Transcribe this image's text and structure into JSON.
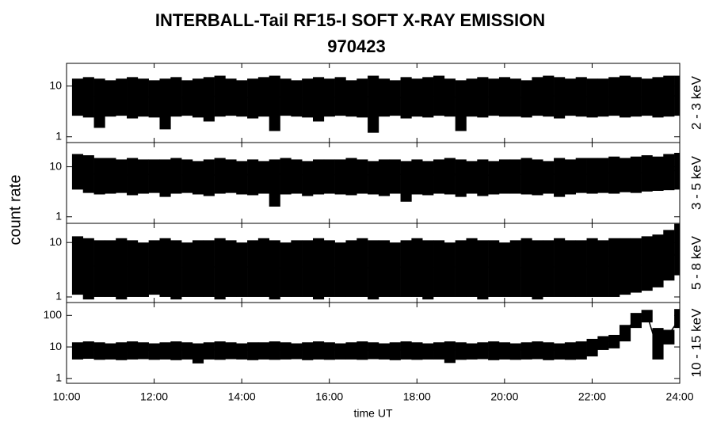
{
  "title": "INTERBALL-Tail RF15-I SOFT X-RAY EMISSION",
  "subtitle": "970423",
  "ylabel": "count rate",
  "xlabel": "time UT",
  "chart_data": [
    {
      "type": "line",
      "name": "2 - 3 keV",
      "color": "#000000",
      "log": true,
      "xlim": [
        10,
        24
      ],
      "xticks": [
        10,
        12,
        14,
        16,
        18,
        20,
        22,
        24
      ],
      "ylim": [
        0.77,
        28
      ],
      "yticks": [
        1,
        10
      ],
      "x": [
        10.25,
        10.5,
        10.75,
        11,
        11.25,
        11.5,
        11.75,
        12,
        12.25,
        12.5,
        12.75,
        13,
        13.25,
        13.5,
        13.75,
        14,
        14.25,
        14.5,
        14.75,
        15,
        15.25,
        15.5,
        15.75,
        16,
        16.25,
        16.5,
        16.75,
        17,
        17.25,
        17.5,
        17.75,
        18,
        18.25,
        18.5,
        18.75,
        19,
        19.25,
        19.5,
        19.75,
        20,
        20.25,
        20.5,
        20.75,
        21,
        21.25,
        21.5,
        21.75,
        22,
        22.25,
        22.5,
        22.75,
        23,
        23.25,
        23.5,
        23.75,
        24
      ],
      "values": [
        6,
        6.5,
        6,
        5.8,
        6.2,
        6,
        6.3,
        5.9,
        6,
        6.1,
        5.7,
        6,
        6.2,
        6.4,
        6,
        5.9,
        6,
        6.1,
        6.3,
        6,
        5.8,
        6,
        6.2,
        6,
        6.1,
        5.9,
        6,
        6.3,
        6,
        5.8,
        6.1,
        6,
        6.2,
        6.4,
        6,
        5.9,
        6,
        6.2,
        6,
        6.1,
        6,
        5.8,
        6.2,
        6.5,
        6.3,
        6,
        6.2,
        6.1,
        6,
        6.3,
        6.4,
        6.2,
        6,
        6.1,
        6.3,
        6.5
      ],
      "low": [
        2.6,
        2.4,
        1.5,
        2.5,
        2.6,
        2.3,
        2.5,
        2.4,
        1.4,
        2.5,
        2.6,
        2.4,
        2,
        2.5,
        2.6,
        2.5,
        2.3,
        2.5,
        1.3,
        2.6,
        2.5,
        2.4,
        2,
        2.5,
        2.6,
        2.5,
        2.4,
        1.2,
        2.5,
        2.6,
        2.3,
        2.5,
        2.4,
        2.6,
        2.5,
        1.3,
        2.5,
        2.4,
        2.6,
        2.5,
        2.5,
        2.4,
        2.6,
        2.5,
        2.3,
        2.6,
        2.5,
        2.4,
        2.5,
        2.6,
        2.4,
        2.5,
        2.6,
        2.4,
        2.5,
        2.6
      ],
      "high": [
        14,
        15,
        14,
        13,
        14,
        15,
        14,
        13,
        14,
        15,
        13,
        14,
        15,
        16,
        14,
        13,
        14,
        15,
        16,
        14,
        13,
        14,
        15,
        14,
        15,
        13,
        14,
        16,
        14,
        13,
        15,
        14,
        15,
        16,
        14,
        13,
        14,
        15,
        14,
        15,
        14,
        13,
        15,
        16,
        15,
        14,
        15,
        14,
        14,
        15,
        16,
        15,
        14,
        15,
        16,
        16
      ]
    },
    {
      "type": "line",
      "name": "3 - 5 keV",
      "color": "#000000",
      "log": true,
      "xlim": [
        10,
        24
      ],
      "xticks": [
        10,
        12,
        14,
        16,
        18,
        20,
        22,
        24
      ],
      "ylim": [
        0.74,
        30.5
      ],
      "yticks": [
        1,
        10
      ],
      "x": [
        10.25,
        10.5,
        10.75,
        11,
        11.25,
        11.5,
        11.75,
        12,
        12.25,
        12.5,
        12.75,
        13,
        13.25,
        13.5,
        13.75,
        14,
        14.25,
        14.5,
        14.75,
        15,
        15.25,
        15.5,
        15.75,
        16,
        16.25,
        16.5,
        16.75,
        17,
        17.25,
        17.5,
        17.75,
        18,
        18.25,
        18.5,
        18.75,
        19,
        19.25,
        19.5,
        19.75,
        20,
        20.25,
        20.5,
        20.75,
        21,
        21.25,
        21.5,
        21.75,
        22,
        22.25,
        22.5,
        22.75,
        23,
        23.25,
        23.5,
        23.75,
        24
      ],
      "values": [
        8,
        7.5,
        7,
        7.2,
        7,
        6.8,
        7,
        7.1,
        7,
        6.9,
        7,
        7.1,
        6.8,
        7,
        7.2,
        7,
        6.9,
        7,
        7.1,
        7,
        6.8,
        7,
        7.1,
        6.9,
        7,
        7.2,
        7,
        6.8,
        6.9,
        7,
        7.1,
        7,
        6.8,
        7,
        7.1,
        6.9,
        7,
        6.7,
        6.9,
        7,
        7,
        7.1,
        7,
        6.9,
        7.2,
        7.3,
        7.1,
        7.2,
        7.3,
        7.4,
        7.5,
        7.6,
        7.8,
        8,
        8.2,
        8.5
      ],
      "low": [
        3.5,
        3,
        2.8,
        2.9,
        3,
        2.7,
        2.9,
        3,
        2.5,
        2.9,
        3,
        2.8,
        2.6,
        2.9,
        3,
        2.8,
        2.7,
        2.9,
        1.6,
        2.8,
        2.9,
        2.6,
        2.8,
        2.9,
        2.8,
        2.7,
        2.9,
        2.8,
        2.6,
        2.9,
        2,
        2.8,
        2.7,
        2.9,
        2.8,
        2.5,
        2.9,
        2.6,
        2.8,
        2.9,
        2.9,
        2.8,
        2.7,
        2.9,
        2.5,
        2.8,
        3,
        2.9,
        3,
        2.9,
        3.1,
        3,
        3.2,
        3.3,
        3.4,
        3.5
      ],
      "high": [
        18,
        17,
        15,
        15,
        14,
        15,
        14,
        14,
        14,
        15,
        14,
        13,
        14,
        15,
        14,
        13,
        14,
        13,
        14,
        15,
        14,
        13,
        14,
        14,
        14,
        15,
        14,
        13,
        14,
        14,
        13,
        14,
        13,
        14,
        15,
        14,
        13,
        14,
        13,
        14,
        14,
        15,
        14,
        13,
        15,
        14,
        15,
        15,
        15,
        16,
        15,
        16,
        17,
        16,
        18,
        19
      ]
    },
    {
      "type": "line",
      "name": "5 - 8 keV",
      "color": "#000000",
      "log": true,
      "xlim": [
        10,
        24
      ],
      "xticks": [
        10,
        12,
        14,
        16,
        18,
        20,
        22,
        24
      ],
      "ylim": [
        0.79,
        22.5
      ],
      "yticks": [
        1,
        10
      ],
      "x": [
        10.25,
        10.5,
        10.75,
        11,
        11.25,
        11.5,
        11.75,
        12,
        12.25,
        12.5,
        12.75,
        13,
        13.25,
        13.5,
        13.75,
        14,
        14.25,
        14.5,
        14.75,
        15,
        15.25,
        15.5,
        15.75,
        16,
        16.25,
        16.5,
        16.75,
        17,
        17.25,
        17.5,
        17.75,
        18,
        18.25,
        18.5,
        18.75,
        19,
        19.25,
        19.5,
        19.75,
        20,
        20.25,
        20.5,
        20.75,
        21,
        21.25,
        21.5,
        21.75,
        22,
        22.25,
        22.5,
        22.75,
        23,
        23.25,
        23.5,
        23.75,
        24
      ],
      "values": [
        4,
        3.8,
        3.6,
        3.5,
        3.6,
        3.5,
        3.4,
        3.6,
        3.5,
        3.4,
        3.6,
        3.5,
        3.5,
        3.6,
        3.4,
        3.5,
        3.6,
        3.5,
        3.4,
        3.5,
        3.6,
        3.5,
        3.5,
        3.4,
        3.5,
        3.6,
        3.5,
        3.4,
        3.5,
        3.6,
        3.5,
        3.5,
        3.4,
        3.5,
        3.6,
        3.5,
        3.4,
        3.5,
        3.6,
        3.5,
        3.5,
        3.4,
        3.5,
        3.6,
        3.5,
        3.5,
        3.6,
        3.7,
        3.6,
        3.7,
        3.8,
        3.7,
        3.9,
        4.2,
        5,
        7
      ],
      "low": [
        1.1,
        0.9,
        1,
        1,
        0.9,
        1,
        1,
        1.1,
        1,
        0.9,
        1,
        1,
        1,
        0.9,
        1,
        1,
        1,
        1,
        0.9,
        1,
        1,
        1,
        0.9,
        1,
        1,
        1,
        1,
        0.9,
        1,
        1,
        1,
        1,
        0.9,
        1,
        1,
        1,
        1,
        0.9,
        1,
        1,
        1,
        1,
        0.9,
        1,
        1,
        1,
        1,
        1,
        1,
        1,
        1.1,
        1.2,
        1.3,
        1.5,
        2,
        2.5
      ],
      "high": [
        13,
        12,
        11,
        11,
        12,
        11,
        10,
        11,
        12,
        11,
        10,
        11,
        11,
        12,
        11,
        10,
        11,
        12,
        11,
        10,
        11,
        11,
        12,
        11,
        10,
        11,
        12,
        11,
        11,
        10,
        11,
        12,
        11,
        11,
        10,
        11,
        12,
        11,
        11,
        10,
        11,
        12,
        11,
        11,
        12,
        11,
        11,
        12,
        11,
        12,
        12,
        12,
        13,
        14,
        17,
        22
      ]
    },
    {
      "type": "line",
      "name": "10 - 15 keV",
      "color": "#000000",
      "log": true,
      "xlim": [
        10,
        24
      ],
      "ylim": [
        0.7,
        257
      ],
      "yticks": [
        1,
        10,
        100
      ],
      "xticks": [
        {
          "value": 10,
          "label": "10:00"
        },
        {
          "value": 12,
          "label": "12:00"
        },
        {
          "value": 14,
          "label": "14:00"
        },
        {
          "value": 16,
          "label": "16:00"
        },
        {
          "value": 18,
          "label": "18:00"
        },
        {
          "value": 20,
          "label": "20:00"
        },
        {
          "value": 22,
          "label": "22:00"
        },
        {
          "value": 24,
          "label": "24:00"
        }
      ],
      "x": [
        10.25,
        10.5,
        10.75,
        11,
        11.25,
        11.5,
        11.75,
        12,
        12.25,
        12.5,
        12.75,
        13,
        13.25,
        13.5,
        13.75,
        14,
        14.25,
        14.5,
        14.75,
        15,
        15.25,
        15.5,
        15.75,
        16,
        16.25,
        16.5,
        16.75,
        17,
        17.25,
        17.5,
        17.75,
        18,
        18.25,
        18.5,
        18.75,
        19,
        19.25,
        19.5,
        19.75,
        20,
        20.25,
        20.5,
        20.75,
        21,
        21.25,
        21.5,
        21.75,
        22,
        22.25,
        22.5,
        22.75,
        23,
        23.25,
        23.5,
        23.75,
        24
      ],
      "values": [
        8,
        8.2,
        8,
        7.9,
        8,
        8.1,
        8,
        7.8,
        8,
        8.1,
        8,
        7.9,
        8,
        8.2,
        8,
        7.9,
        8,
        8.1,
        8,
        7.8,
        8,
        8.1,
        8,
        7.9,
        8,
        8.2,
        8,
        7.9,
        8,
        8.1,
        8,
        7.8,
        8,
        8.1,
        8,
        7.9,
        8,
        8.2,
        8,
        7.9,
        8,
        8.1,
        8,
        7.8,
        8,
        8.1,
        8.3,
        10,
        14,
        16,
        30,
        80,
        110,
        8,
        25,
        80
      ],
      "low": [
        4,
        4.2,
        3.9,
        4,
        3.8,
        4,
        4.1,
        3.9,
        4,
        3.8,
        4,
        3,
        4,
        3.9,
        4.1,
        4,
        3.8,
        4,
        3.9,
        4,
        4.1,
        3.8,
        4,
        3.9,
        4,
        4,
        3.9,
        4.1,
        4,
        3.8,
        4,
        3.9,
        4,
        4,
        3.1,
        3.9,
        4,
        4.1,
        3.8,
        4,
        3.9,
        4,
        4.1,
        3.8,
        4,
        3.9,
        4,
        5,
        8,
        9,
        15,
        40,
        60,
        4,
        12,
        40
      ],
      "high": [
        14,
        15,
        14,
        13,
        14,
        15,
        14,
        13,
        14,
        15,
        14,
        13,
        14,
        15,
        14,
        13,
        14,
        14,
        15,
        14,
        13,
        14,
        15,
        14,
        13,
        14,
        15,
        14,
        13,
        14,
        15,
        14,
        13,
        14,
        15,
        14,
        13,
        14,
        15,
        14,
        13,
        14,
        15,
        14,
        13,
        14,
        15,
        18,
        22,
        24,
        50,
        120,
        150,
        40,
        35,
        160
      ]
    }
  ]
}
